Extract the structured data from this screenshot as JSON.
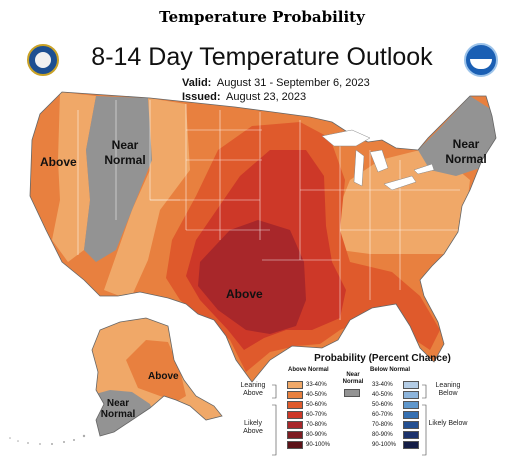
{
  "page_title": "Temperature Probability",
  "map": {
    "title": "8-14 Day Temperature Outlook",
    "valid_label": "Valid:",
    "valid_dates": "August 31 - September 6, 2023",
    "issued_label": "Issued:",
    "issued_date": "August 23, 2023"
  },
  "region_labels": {
    "above_west": "Above",
    "near_normal_west": "Near Normal",
    "near_normal_northeast": "Near Normal",
    "above_south": "Above",
    "above_alaska": "Above",
    "near_normal_alaska": "Near Normal"
  },
  "legend": {
    "title": "Probability (Percent Chance)",
    "above_header": "Above Normal",
    "below_header": "Below Normal",
    "near_normal": "Near Normal",
    "leaning_above": "Leaning Above",
    "likely_above": "Likely Above",
    "leaning_below": "Leaning Below",
    "likely_below": "Likely Below",
    "above_rows": [
      {
        "label": "33-40%",
        "color": "#f0a868"
      },
      {
        "label": "40-50%",
        "color": "#e8803f"
      },
      {
        "label": "50-60%",
        "color": "#df5a2c"
      },
      {
        "label": "60-70%",
        "color": "#cd3828"
      },
      {
        "label": "70-80%",
        "color": "#a8272a"
      },
      {
        "label": "80-90%",
        "color": "#7e1c22"
      },
      {
        "label": "90-100%",
        "color": "#5c1218"
      }
    ],
    "below_rows": [
      {
        "label": "33-40%",
        "color": "#b4cde6"
      },
      {
        "label": "40-50%",
        "color": "#8db5dc"
      },
      {
        "label": "50-60%",
        "color": "#5f97cc"
      },
      {
        "label": "60-70%",
        "color": "#3570b2"
      },
      {
        "label": "70-80%",
        "color": "#234f91"
      },
      {
        "label": "80-90%",
        "color": "#1c326c"
      },
      {
        "label": "90-100%",
        "color": "#141d46"
      }
    ],
    "near_normal_color": "#939393"
  },
  "icons": {
    "left_logo": "commerce-seal-icon",
    "right_logo": "noaa-logo-icon"
  }
}
